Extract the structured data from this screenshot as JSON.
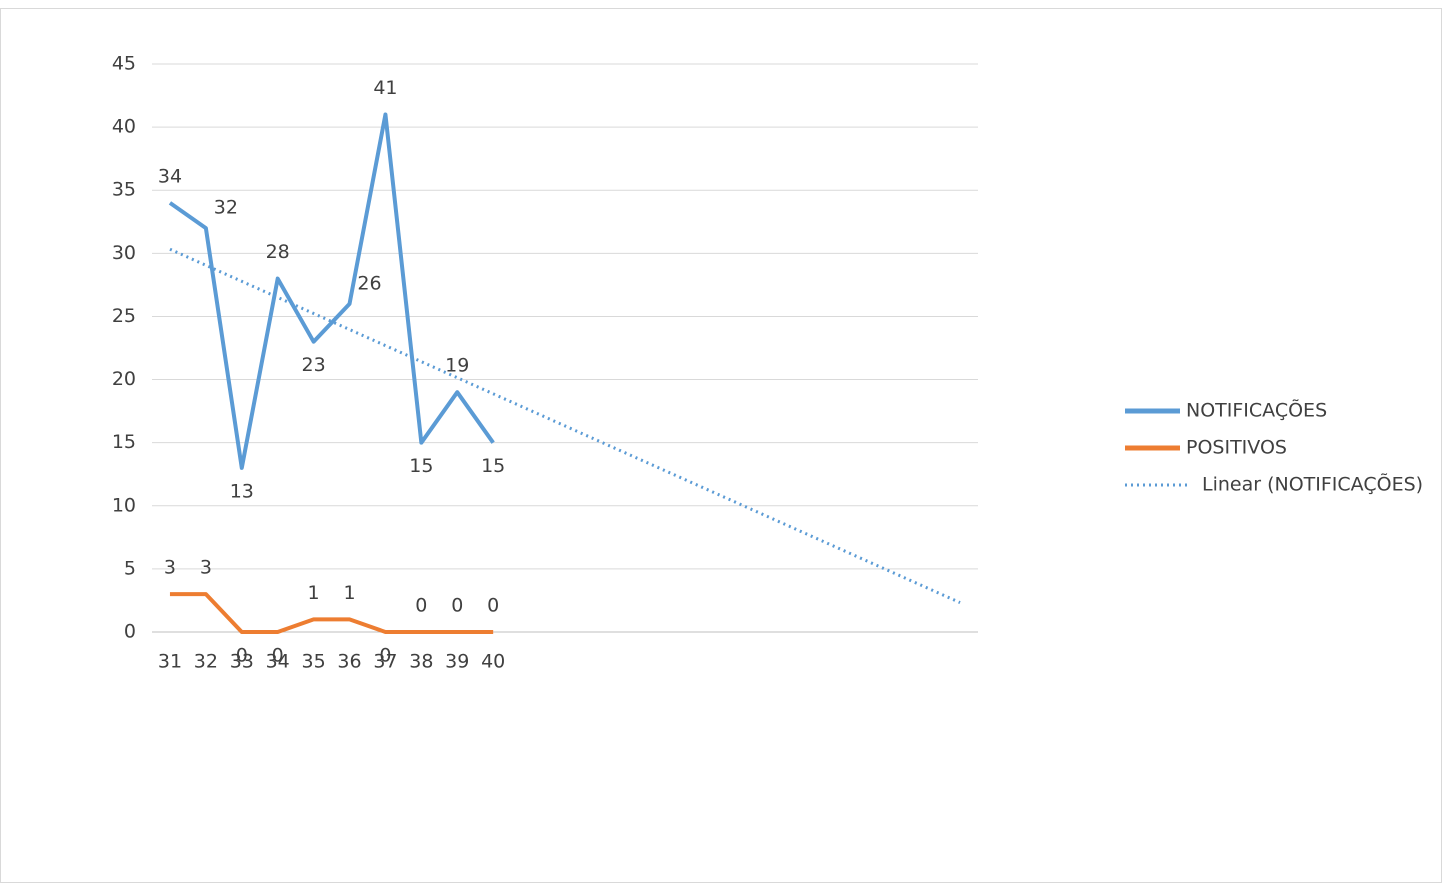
{
  "chart_data": {
    "type": "line",
    "categories": [
      31,
      32,
      33,
      34,
      35,
      36,
      37,
      38,
      39,
      40,
      null,
      null,
      null,
      null,
      null,
      null,
      null,
      null,
      null,
      null,
      null,
      null,
      null
    ],
    "series": [
      {
        "name": "NOTIFICAÇÕES",
        "color": "#5b9bd5",
        "values": [
          34,
          32,
          13,
          28,
          23,
          26,
          41,
          15,
          19,
          15,
          null,
          null,
          null,
          null,
          null,
          null,
          null,
          null,
          null,
          null,
          null,
          null,
          null
        ]
      },
      {
        "name": "POSITIVOS",
        "color": "#ed7d31",
        "values": [
          3,
          3,
          0,
          0,
          1,
          1,
          0,
          0,
          0,
          0,
          null,
          null,
          null,
          null,
          null,
          null,
          null,
          null,
          null,
          null,
          null,
          null,
          null
        ]
      }
    ],
    "trendline": {
      "name": "Linear (NOTIFICAÇÕES)",
      "type": "linear",
      "series": 0,
      "color": "#5b9bd5"
    },
    "ylim": [
      0,
      45
    ],
    "yticks": [
      0,
      5,
      10,
      15,
      20,
      25,
      30,
      35,
      40,
      45
    ],
    "grid": true,
    "legend": "right"
  }
}
